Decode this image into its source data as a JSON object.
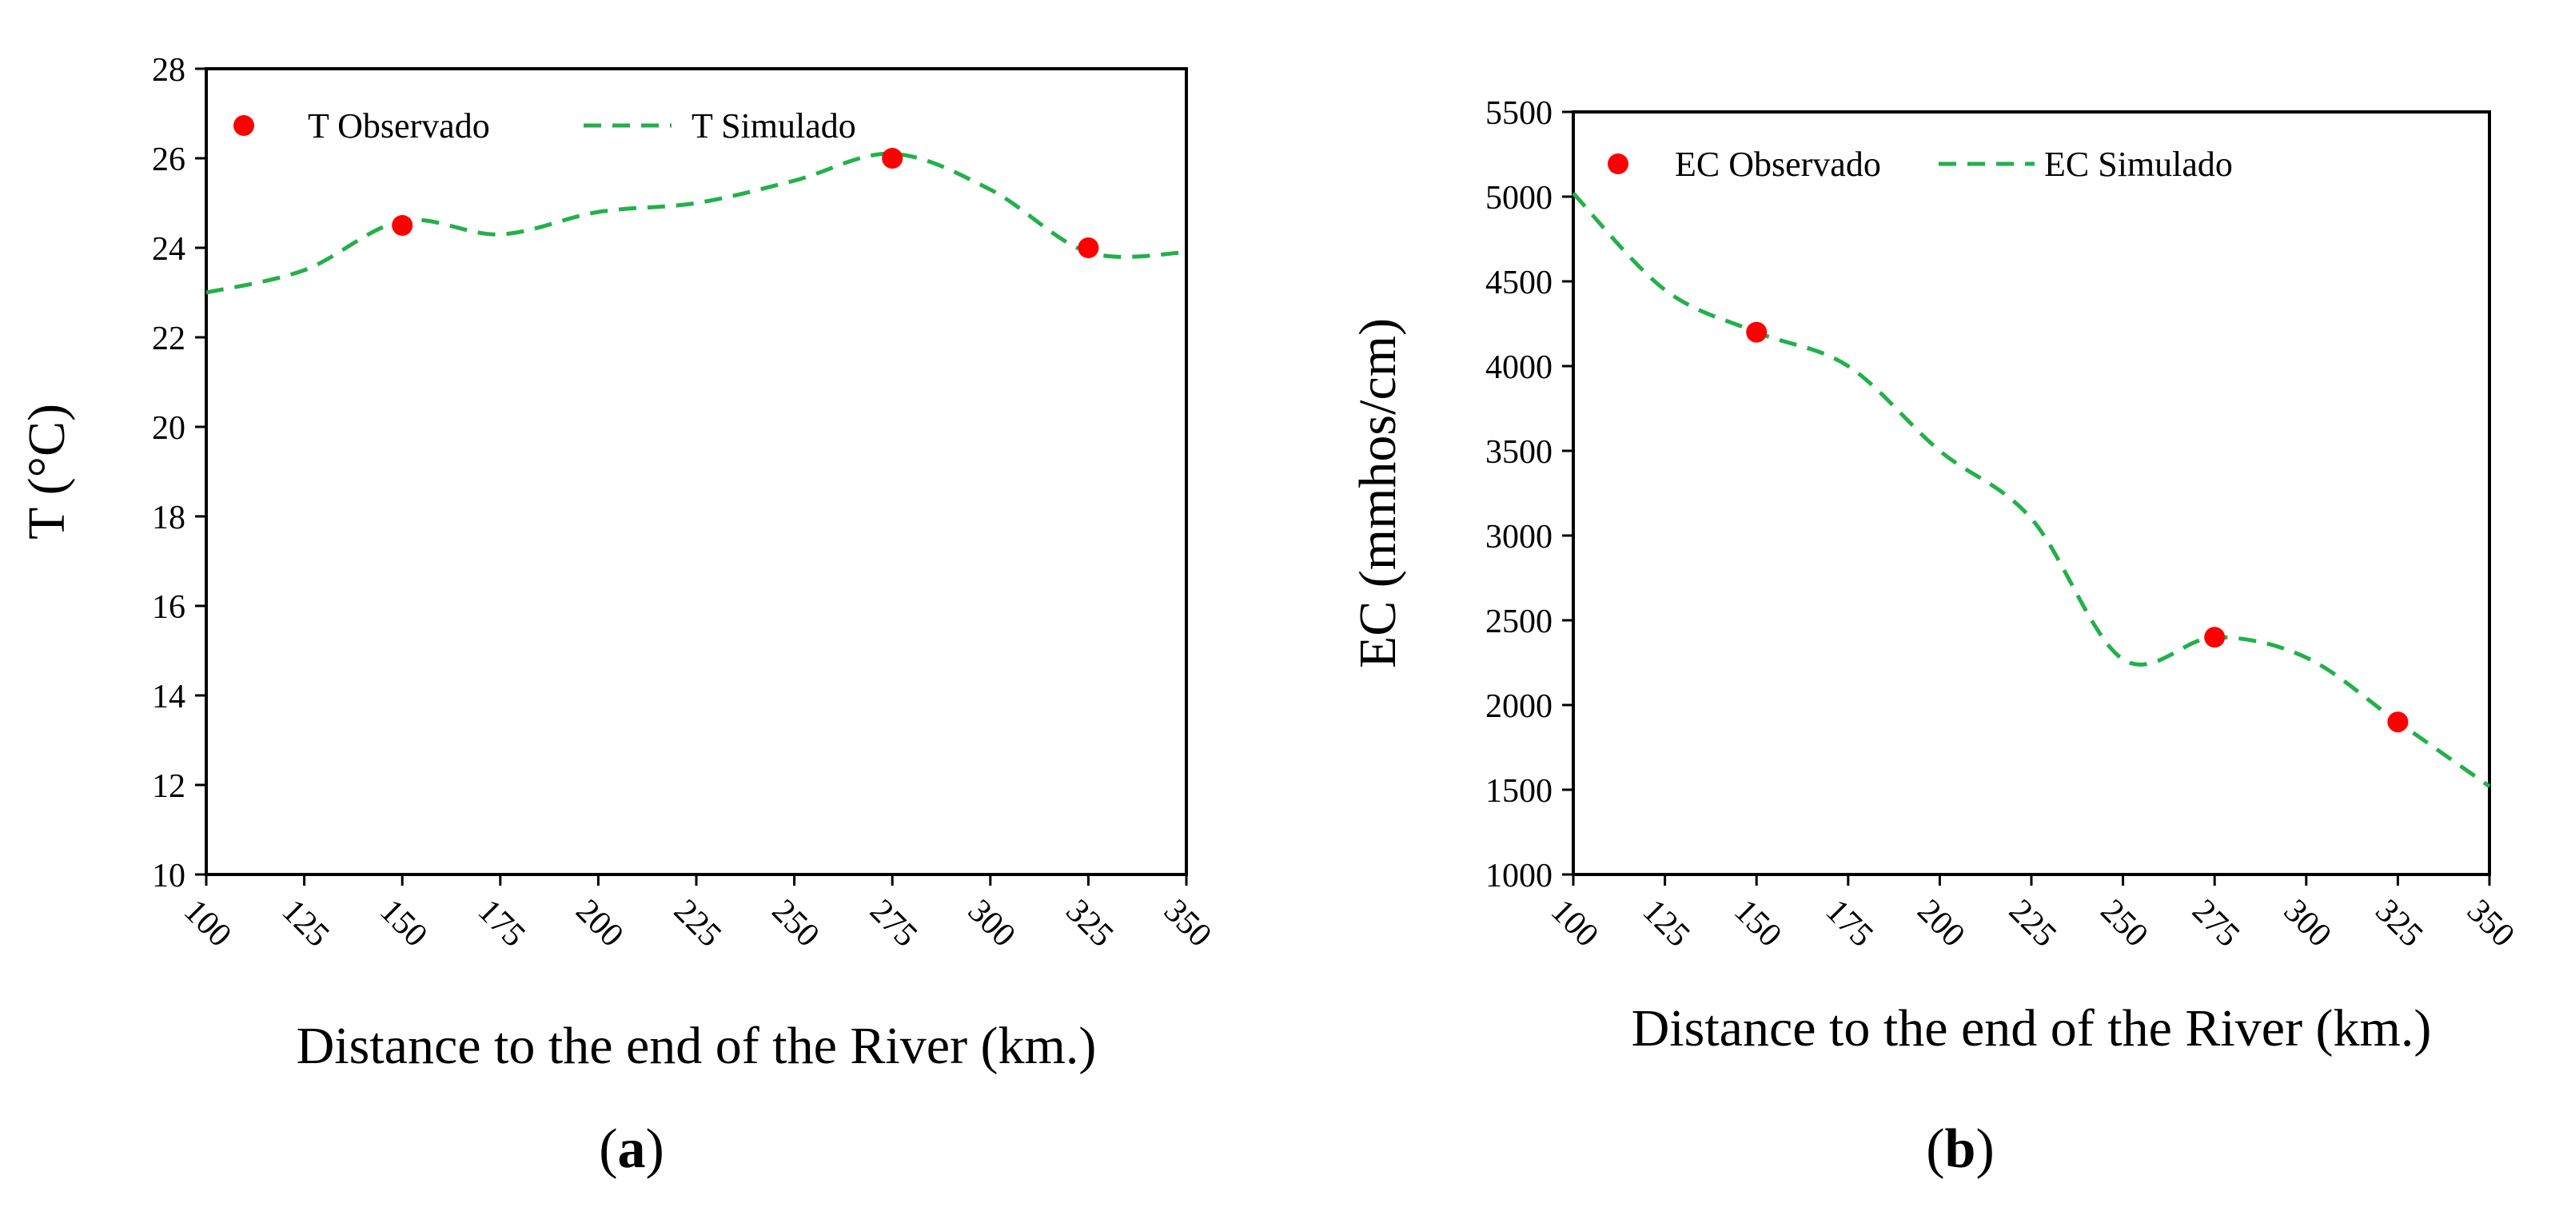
{
  "chart_data": [
    {
      "type": "line",
      "panel_label": "a",
      "title": "",
      "xlabel": "Distance to the end of the River (km.)",
      "ylabel": "T (°C)",
      "xlim": [
        100,
        350
      ],
      "ylim": [
        10,
        28
      ],
      "x_ticks": [
        "100",
        "125",
        "150",
        "175",
        "200",
        "225",
        "250",
        "275",
        "300",
        "325",
        "350"
      ],
      "y_ticks": [
        "10",
        "12",
        "14",
        "16",
        "18",
        "20",
        "22",
        "24",
        "26",
        "28"
      ],
      "grid": false,
      "legend_position": "top-left",
      "series": [
        {
          "name": "T Observado",
          "kind": "scatter",
          "color": "#ff0000",
          "x": [
            150,
            275,
            325
          ],
          "y": [
            24.5,
            26.0,
            24.0
          ]
        },
        {
          "name": "T Simulado",
          "kind": "line",
          "style": "dashed",
          "color": "#22b04a",
          "x": [
            100,
            125,
            150,
            175,
            200,
            225,
            250,
            275,
            300,
            325,
            350
          ],
          "y": [
            23.0,
            23.5,
            24.6,
            24.3,
            24.8,
            25.0,
            25.5,
            26.1,
            25.3,
            23.9,
            23.9
          ]
        }
      ]
    },
    {
      "type": "line",
      "panel_label": "b",
      "title": "",
      "xlabel": "Distance to the end of the River (km.)",
      "ylabel": "EC (mmhos/cm)",
      "xlim": [
        100,
        350
      ],
      "ylim": [
        1000,
        5500
      ],
      "x_ticks": [
        "100",
        "125",
        "150",
        "175",
        "200",
        "225",
        "250",
        "275",
        "300",
        "325",
        "350"
      ],
      "y_ticks": [
        "1000",
        "1500",
        "2000",
        "2500",
        "3000",
        "3500",
        "4000",
        "4500",
        "5000",
        "5500"
      ],
      "grid": false,
      "legend_position": "top-left",
      "series": [
        {
          "name": "EC Observado",
          "kind": "scatter",
          "color": "#ff0000",
          "x": [
            150,
            275,
            325
          ],
          "y": [
            4200,
            2400,
            1900
          ]
        },
        {
          "name": "EC Simulado",
          "kind": "line",
          "style": "dashed",
          "color": "#22b04a",
          "x": [
            100,
            125,
            150,
            175,
            200,
            225,
            250,
            275,
            300,
            325,
            350
          ],
          "y": [
            5020,
            4450,
            4200,
            4000,
            3500,
            3100,
            2270,
            2400,
            2280,
            1900,
            1520
          ]
        }
      ]
    }
  ]
}
